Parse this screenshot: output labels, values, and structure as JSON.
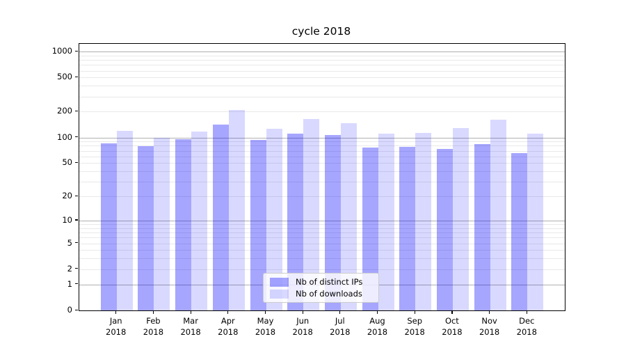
{
  "chart_data": {
    "type": "bar",
    "title": "cycle 2018",
    "categories": [
      "Jan",
      "Feb",
      "Mar",
      "Apr",
      "May",
      "Jun",
      "Jul",
      "Aug",
      "Sep",
      "Oct",
      "Nov",
      "Dec"
    ],
    "category_year": "2018",
    "series": [
      {
        "name": "Nb of distinct IPs",
        "color": "rgba(0,0,255,0.35)",
        "values": [
          85,
          79,
          96,
          141,
          93,
          110,
          107,
          76,
          78,
          74,
          84,
          66
        ]
      },
      {
        "name": "Nb of downloads",
        "color": "rgba(0,0,255,0.15)",
        "values": [
          119,
          100,
          117,
          210,
          127,
          164,
          146,
          112,
          114,
          128,
          162,
          110
        ]
      }
    ],
    "yscale": "log1p",
    "ylim": [
      0,
      1000
    ],
    "yticks": [
      0,
      1,
      2,
      5,
      10,
      20,
      50,
      100,
      200,
      500,
      1000
    ],
    "grid": "both",
    "legend_position": "lower-center",
    "colors": {
      "grid_major": "#b0b0b0",
      "grid_minor": "#e9e9e9",
      "spine": "#000000",
      "text": "#000000",
      "legend_border": "#cccccc",
      "legend_background": "rgba(255,255,255,0.8)"
    }
  }
}
